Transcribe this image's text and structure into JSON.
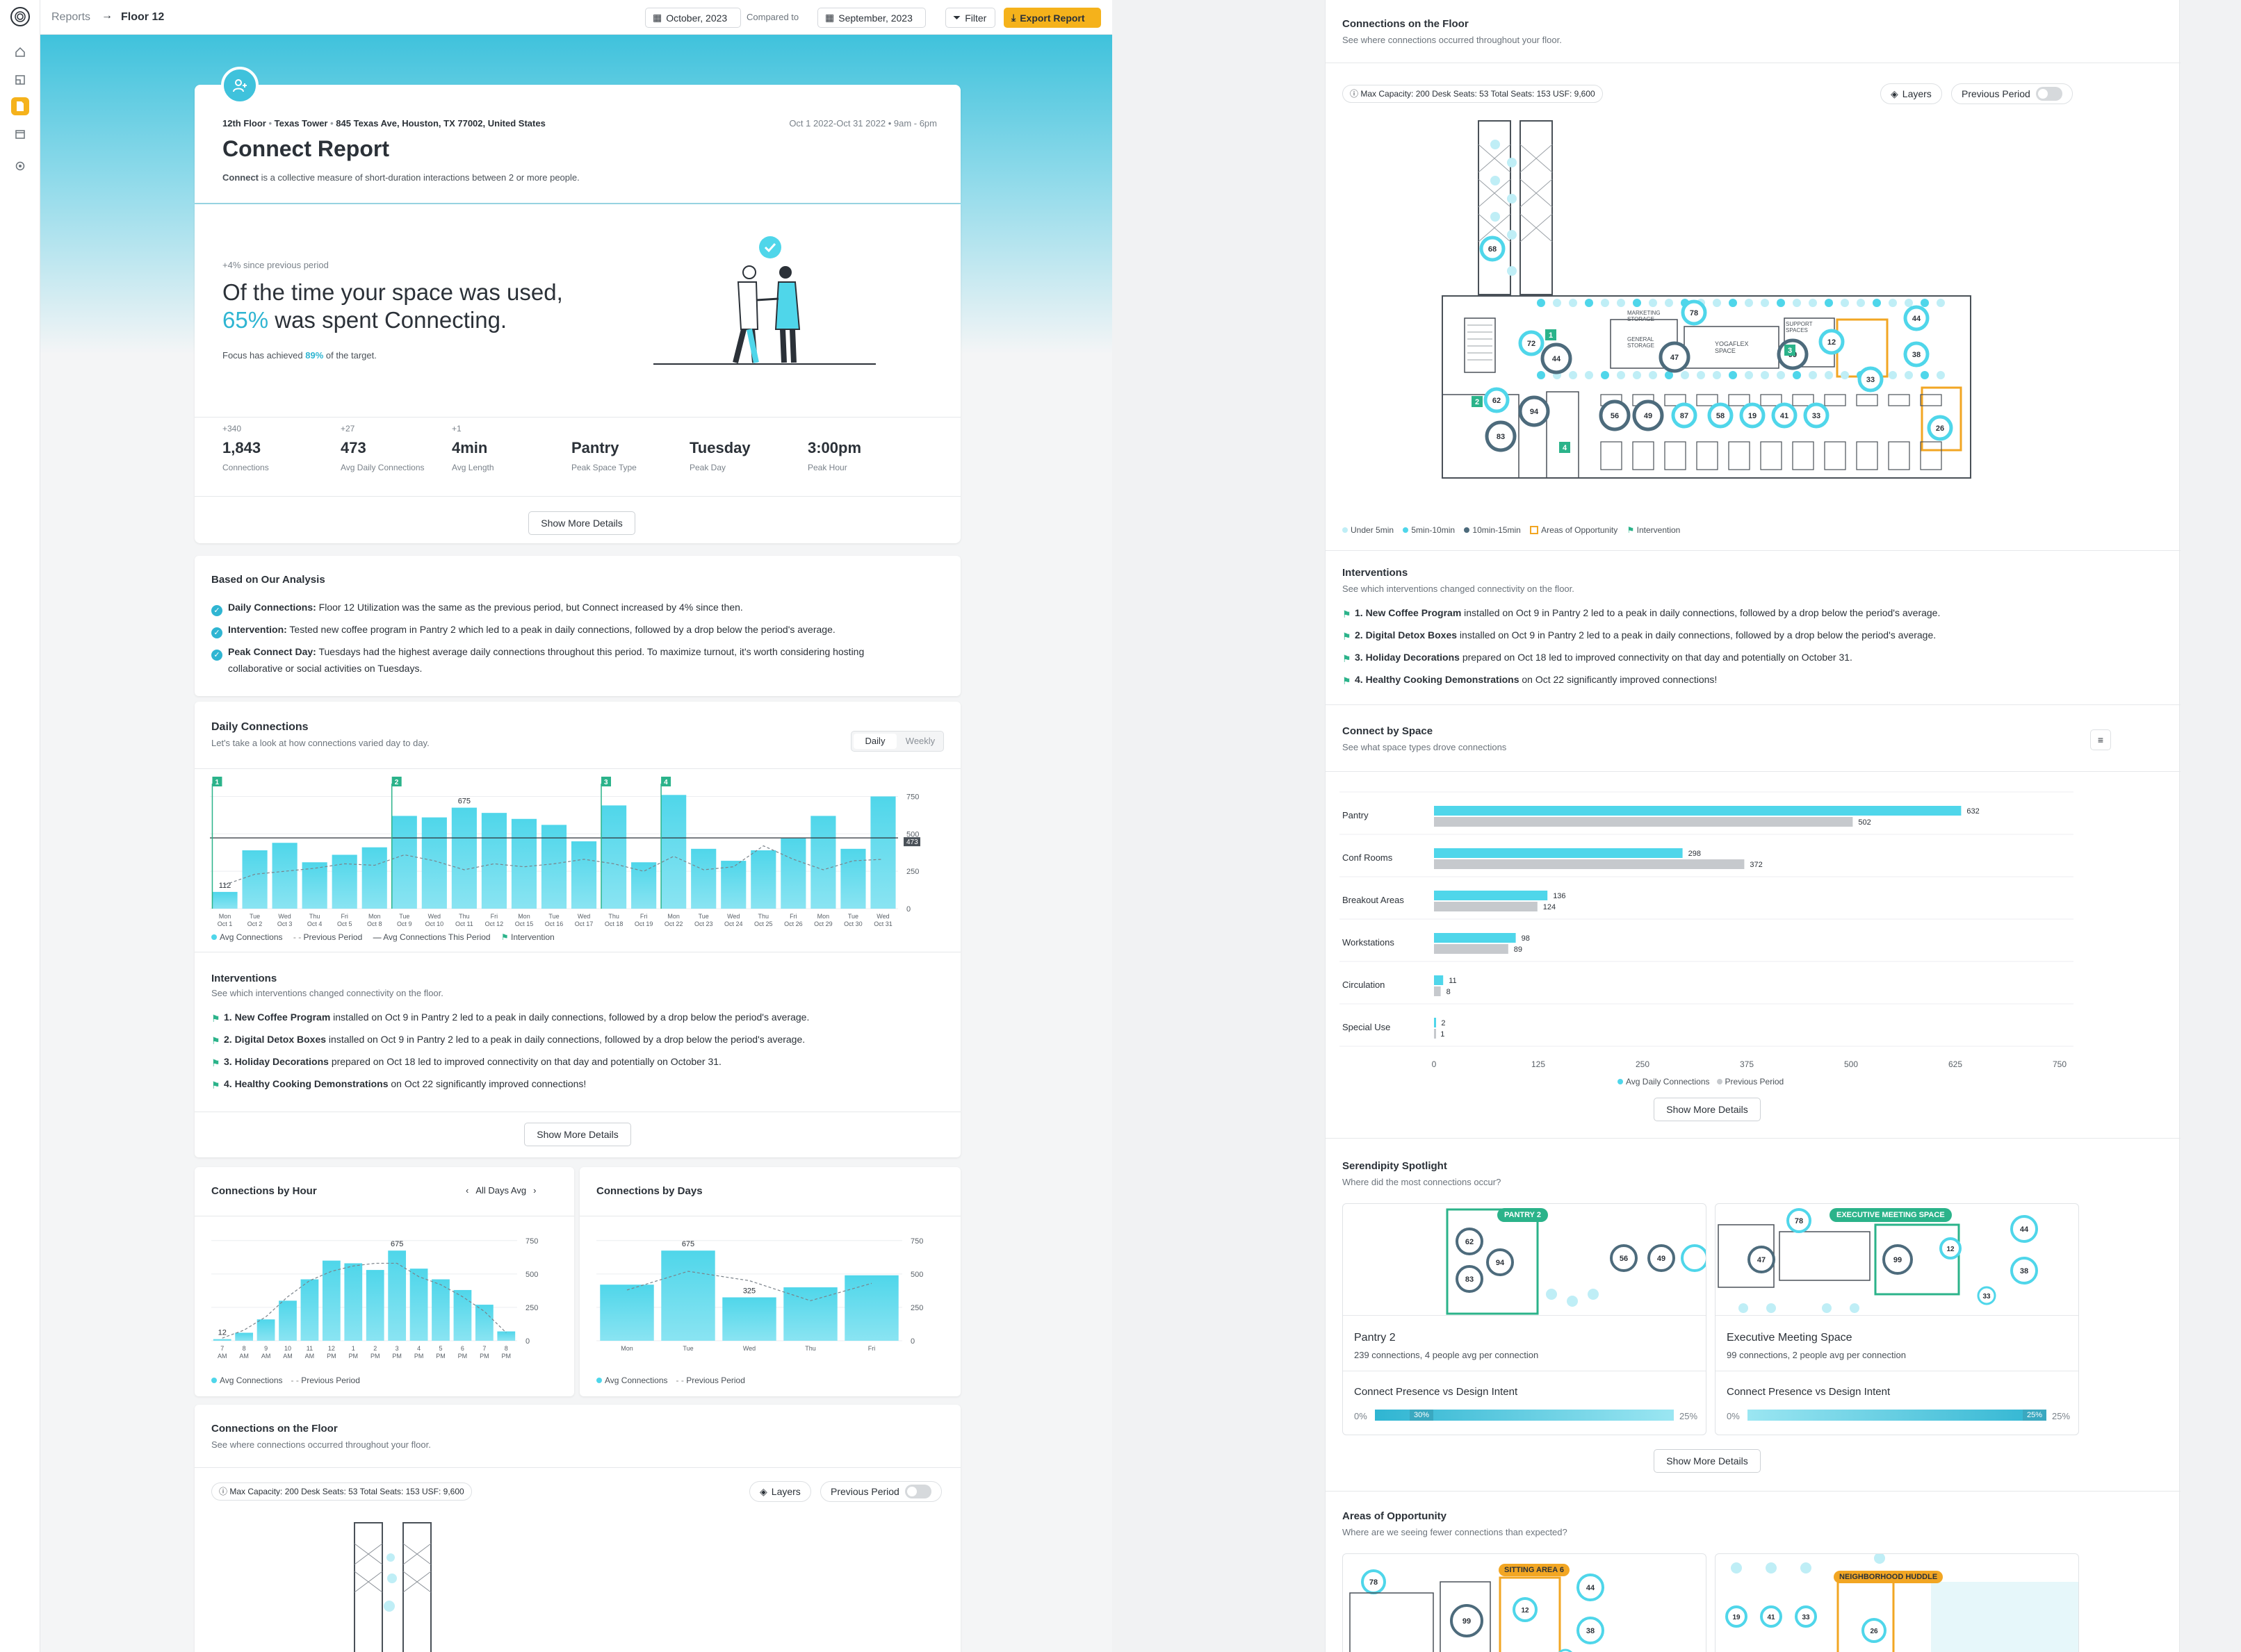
{
  "topbar": {
    "crumb_root": "Reports",
    "crumb_arrow": "→",
    "crumb_current": "Floor 12",
    "period": "October, 2023",
    "compared_label": "Compared to",
    "compared_period": "September, 2023",
    "filter": "Filter",
    "export": "Export Report"
  },
  "header": {
    "floor": "12th Floor",
    "building": "Texas Tower",
    "address": "845 Texas Ave, Houston, TX 77002, United States",
    "date_range": "Oct 1 2022-Oct 31 2022",
    "hours": "9am - 6pm",
    "title": "Connect Report",
    "desc_bold": "Connect",
    "desc_rest": " is a collective measure of short-duration interactions between 2 or more people."
  },
  "hero": {
    "delta": "+4% since previous period",
    "line1": "Of the time your space was used,",
    "pct": "65%",
    "line2": " was spent Connecting.",
    "target_pre": "Focus has achieved ",
    "target_pct": "89%",
    "target_post": " of the target."
  },
  "stats": [
    {
      "delta": "+340",
      "value": "1,843",
      "label": "Connections"
    },
    {
      "delta": "+27",
      "value": "473",
      "label": "Avg Daily Connections"
    },
    {
      "delta": "+1",
      "value": "4min",
      "label": "Avg Length"
    },
    {
      "delta": "",
      "value": "Pantry",
      "label": "Peak Space Type"
    },
    {
      "delta": "",
      "value": "Tuesday",
      "label": "Peak Day"
    },
    {
      "delta": "",
      "value": "3:00pm",
      "label": "Peak Hour"
    }
  ],
  "show_more": "Show More Details",
  "analysis": {
    "title": "Based on Our Analysis",
    "items": [
      {
        "bold": "Daily Connections:",
        "text": " Floor 12 Utilization was the same as the previous period, but Connect increased by 4% since then."
      },
      {
        "bold": "Intervention:",
        "text": " Tested new coffee program in Pantry 2 which led to a peak in daily connections, followed by a drop below the period's average."
      },
      {
        "bold": "Peak Connect Day:",
        "text": " Tuesdays had the highest average daily connections throughout this period. To maximize turnout, it's worth considering hosting"
      },
      {
        "bold": "",
        "text": "collaborative or social activities on Tuesdays."
      }
    ]
  },
  "daily": {
    "title": "Daily Connections",
    "sub": "Let's take a look at how connections varied day to day.",
    "tab_daily": "Daily",
    "tab_weekly": "Weekly",
    "legend": [
      "Avg Connections",
      "Previous Period",
      "Avg Connections This Period",
      "Intervention"
    ]
  },
  "interventions": {
    "title": "Interventions",
    "sub": "See which interventions changed connectivity on the floor.",
    "items": [
      {
        "bold": "1. New Coffee Program",
        "text": " installed on Oct 9 in Pantry 2 led to a peak in daily connections, followed by a drop below the period's average."
      },
      {
        "bold": "2. Digital Detox Boxes",
        "text": " installed on Oct 9 in Pantry 2 led to a peak in daily connections, followed by a drop below the period's average."
      },
      {
        "bold": "3. Holiday Decorations",
        "text": " prepared on Oct 18 led to improved connectivity on that day and potentially on October 31."
      },
      {
        "bold": "4. Healthy Cooking Demonstrations",
        "text": " on Oct 22 significantly improved connections!"
      }
    ]
  },
  "by_hour": {
    "title": "Connections by Hour",
    "nav": "All Days Avg",
    "legend": [
      "Avg Connections",
      "Previous Period"
    ]
  },
  "by_days": {
    "title": "Connections by Days",
    "legend": [
      "Avg Connections",
      "Previous Period"
    ]
  },
  "floor": {
    "title": "Connections on the Floor",
    "sub": "See where connections occurred throughout your floor.",
    "capacity": "Max Capacity: 200",
    "desk": "Desk Seats: 53",
    "total": "Total Seats: 153",
    "usf": "USF: 9,600",
    "layers": "Layers",
    "previous": "Previous Period",
    "legend": [
      "Under 5min",
      "5min-10min",
      "10min-15min",
      "Areas of Opportunity",
      "Intervention"
    ],
    "room_labels": [
      "MARKETING STORAGE",
      "GENERAL STORAGE",
      "YOGAFLEX SPACE",
      "SUPPORT SPACES"
    ]
  },
  "by_space": {
    "title": "Connect by Space",
    "sub": "See what space types drove connections",
    "legend": [
      "Avg Daily Connections",
      "Previous Period"
    ]
  },
  "serendipity": {
    "title": "Serendipity Spotlight",
    "sub": "Where did the most connections occur?",
    "cards": [
      {
        "tag": "PANTRY 2",
        "name": "Pantry 2",
        "desc": "239 connections, 4 people avg per connection",
        "cmp": "Connect Presence vs Design Intent",
        "min": "0%",
        "max": "25%",
        "marker": "30%",
        "fill": 1.0
      },
      {
        "tag": "EXECUTIVE MEETING SPACE",
        "name": "Executive Meeting Space",
        "desc": "99 connections, 2 people avg per connection",
        "cmp": "Connect Presence vs Design Intent",
        "min": "0%",
        "max": "25%",
        "marker": "25%",
        "fill": 1.0
      }
    ]
  },
  "opportunity": {
    "title": "Areas of Opportunity",
    "sub": "Where are we seeing fewer connections than expected?",
    "tags": [
      "SITTING AREA 6",
      "NEIGHBORHOOD HUDDLE"
    ]
  },
  "colors": {
    "accent": "#4fd6ea",
    "accent_dark": "#2fb5d2",
    "previous": "#c6c9cd",
    "intervention": "#2bb38a",
    "opportunity": "#f2a623",
    "export": "#f5b21b",
    "bubble_dark": "#4d6b7c"
  },
  "chart_data": [
    {
      "type": "bar",
      "title": "Daily Connections",
      "categories": [
        "Oct 1",
        "Oct 2",
        "Oct 3",
        "Oct 4",
        "Oct 5",
        "Oct 8",
        "Oct 9",
        "Oct 10",
        "Oct 11",
        "Oct 12",
        "Oct 15",
        "Oct 16",
        "Oct 17",
        "Oct 18",
        "Oct 19",
        "Oct 22",
        "Oct 23",
        "Oct 24",
        "Oct 25",
        "Oct 26",
        "Oct 29",
        "Oct 30",
        "Oct 31"
      ],
      "weekday": [
        "Mon",
        "Tue",
        "Wed",
        "Thu",
        "Fri",
        "Mon",
        "Tue",
        "Wed",
        "Thu",
        "Fri",
        "Mon",
        "Tue",
        "Wed",
        "Thu",
        "Fri",
        "Mon",
        "Tue",
        "Wed",
        "Thu",
        "Fri",
        "Mon",
        "Tue",
        "Wed"
      ],
      "series": [
        {
          "name": "Avg Connections",
          "values": [
            112,
            390,
            440,
            310,
            360,
            410,
            620,
            610,
            675,
            640,
            600,
            560,
            450,
            690,
            310,
            760,
            400,
            320,
            390,
            470,
            620,
            400,
            750
          ]
        },
        {
          "name": "Previous Period",
          "values": [
            160,
            230,
            250,
            270,
            300,
            290,
            360,
            320,
            260,
            300,
            280,
            300,
            330,
            300,
            250,
            350,
            260,
            280,
            420,
            330,
            260,
            320,
            330
          ]
        }
      ],
      "average_line": 473,
      "interventions": [
        {
          "label": "1",
          "index": 0
        },
        {
          "label": "2",
          "index": 6
        },
        {
          "label": "3",
          "index": 13
        },
        {
          "label": "4",
          "index": 15
        }
      ],
      "data_labels": [
        {
          "index": 0,
          "text": "112"
        },
        {
          "index": 8,
          "text": "675"
        }
      ],
      "yticks": [
        "750",
        "500",
        "473",
        "250",
        "0"
      ],
      "ylim": [
        0,
        780
      ]
    },
    {
      "type": "bar",
      "title": "Connections by Hour",
      "categories": [
        "7 AM",
        "8 AM",
        "9 AM",
        "10 AM",
        "11 AM",
        "12 PM",
        "1 PM",
        "2 PM",
        "3 PM",
        "4 PM",
        "5 PM",
        "6 PM",
        "7 PM",
        "8 PM"
      ],
      "series": [
        {
          "name": "Avg Connections",
          "values": [
            12,
            60,
            160,
            300,
            460,
            600,
            580,
            530,
            675,
            540,
            460,
            380,
            270,
            70
          ]
        },
        {
          "name": "Previous Period",
          "values": [
            20,
            80,
            180,
            330,
            450,
            520,
            560,
            580,
            580,
            480,
            420,
            330,
            220,
            60
          ]
        }
      ],
      "data_labels": [
        {
          "index": 0,
          "text": "12"
        },
        {
          "index": 8,
          "text": "675"
        }
      ],
      "yticks": [
        "750",
        "500",
        "250",
        "0"
      ],
      "ylim": [
        0,
        780
      ]
    },
    {
      "type": "bar",
      "title": "Connections by Days",
      "categories": [
        "Mon",
        "Tue",
        "Wed",
        "Thu",
        "Fri"
      ],
      "series": [
        {
          "name": "Avg Connections",
          "values": [
            420,
            675,
            325,
            400,
            490
          ]
        },
        {
          "name": "Previous Period",
          "values": [
            380,
            520,
            450,
            300,
            430
          ]
        }
      ],
      "data_labels": [
        {
          "index": 1,
          "text": "675"
        },
        {
          "index": 2,
          "text": "325"
        }
      ],
      "yticks": [
        "750",
        "500",
        "250",
        "0"
      ],
      "ylim": [
        0,
        780
      ]
    },
    {
      "type": "bar",
      "title": "Connect by Space",
      "categories": [
        "Pantry",
        "Conf Rooms",
        "Breakout Areas",
        "Workstations",
        "Circulation",
        "Special Use"
      ],
      "series": [
        {
          "name": "Avg Daily Connections",
          "values": [
            632,
            298,
            136,
            98,
            11,
            2
          ]
        },
        {
          "name": "Previous Period",
          "values": [
            502,
            372,
            124,
            89,
            8,
            1
          ]
        }
      ],
      "xticks": [
        "0",
        "125",
        "250",
        "375",
        "500",
        "625",
        "750"
      ],
      "xlim": [
        0,
        750
      ]
    }
  ],
  "bubbles_main": [
    "68",
    "72",
    "44",
    "47",
    "78",
    "99",
    "12",
    "44",
    "38",
    "33",
    "56",
    "49",
    "87",
    "58",
    "19",
    "41",
    "33",
    "62",
    "94",
    "83",
    "26"
  ],
  "interv_tags": [
    "1",
    "2",
    "3",
    "4"
  ]
}
